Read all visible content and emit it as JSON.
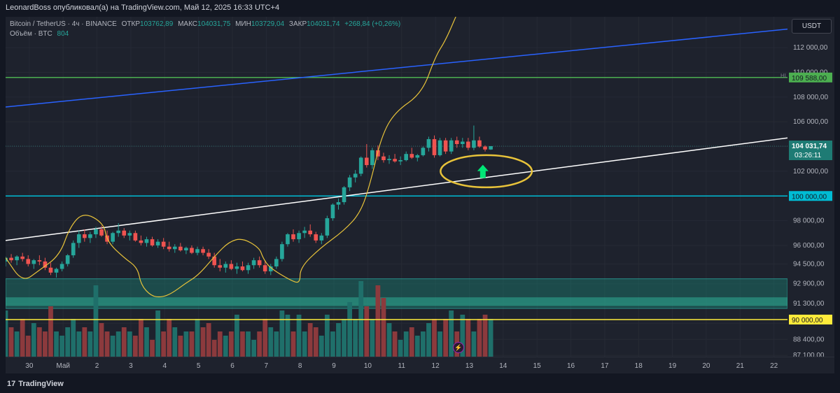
{
  "header": {
    "publisher": "LeonardBoss опубликовал(а) на TradingView.com, Май 12, 2025 16:33 UTC+4"
  },
  "legend": {
    "symbol": "Bitcoin / TetherUS · 4ч · BINANCE",
    "open_label": "ОТКР",
    "open": "103762,89",
    "high_label": "МАКС",
    "high": "104031,75",
    "low_label": "МИН",
    "low": "103729,04",
    "close_label": "ЗАКР",
    "close": "104031,74",
    "change": "+268,84 (+0,26%)",
    "volume_label": "Объём · BTC",
    "volume": "804"
  },
  "currency_button": "USDT",
  "hi_marker": "HI",
  "footer": {
    "brand": "TradingView",
    "logo": "17"
  },
  "colors": {
    "up": "#26a69a",
    "down": "#ef5350",
    "vol_up": "#1f6f6a",
    "vol_down": "#8c3a3d",
    "blue_line": "#2962ff",
    "white_line": "#ffffff",
    "green_line": "#4caf50",
    "cyan_line": "#00bcd4",
    "yellow_line": "#ffeb3b",
    "zone": "#1a7f72",
    "annotation": "#e8c33a",
    "arrow": "#00e676"
  },
  "chart_data": {
    "type": "candlestick",
    "title": "Bitcoin / TetherUS · 4ч · BINANCE",
    "ylim": [
      87000,
      114500
    ],
    "y_ticks": [
      87100,
      88400,
      89700,
      91300,
      92900,
      94500,
      96000,
      98000,
      100000,
      102000,
      104000,
      106000,
      108000,
      110000,
      112000
    ],
    "y_tick_labels": [
      "87 100,00",
      "88 400,00",
      "",
      "91 300,00",
      "92 900,00",
      "94 500,00",
      "96 000,00",
      "98 000,00",
      "",
      "102 000,00",
      "",
      "106 000,00",
      "108 000,00",
      "110 000,00",
      "112 000,00"
    ],
    "x_ticks": [
      "30",
      "Май",
      "2",
      "3",
      "4",
      "5",
      "6",
      "7",
      "8",
      "9",
      "10",
      "11",
      "12",
      "13",
      "14",
      "15",
      "16",
      "17",
      "18",
      "19",
      "20",
      "21",
      "22"
    ],
    "x_tick_day_offsets": [
      0,
      1,
      2,
      3,
      4,
      5,
      6,
      7,
      8,
      9,
      10,
      11,
      12,
      13,
      14,
      15,
      16,
      17,
      18,
      19,
      20,
      21,
      22
    ],
    "x_range_days": [
      -0.7,
      22.4
    ],
    "candle_start_day": -0.7,
    "candles_per_day": 6,
    "ohlc": [
      [
        94700,
        95100,
        94300,
        95000
      ],
      [
        95000,
        95300,
        94600,
        94800
      ],
      [
        94800,
        95200,
        94400,
        95100
      ],
      [
        95100,
        95400,
        94700,
        94900
      ],
      [
        94900,
        95200,
        94300,
        94500
      ],
      [
        94500,
        94900,
        94100,
        94800
      ],
      [
        94800,
        95200,
        94400,
        94700
      ],
      [
        94700,
        95000,
        94000,
        94200
      ],
      [
        94200,
        94600,
        93600,
        93800
      ],
      [
        93800,
        94200,
        93400,
        94100
      ],
      [
        94100,
        94700,
        93900,
        94500
      ],
      [
        94500,
        95300,
        94300,
        95200
      ],
      [
        95200,
        96400,
        95000,
        96200
      ],
      [
        96200,
        97200,
        95800,
        96900
      ],
      [
        96900,
        97300,
        96300,
        96600
      ],
      [
        96600,
        97100,
        96200,
        96900
      ],
      [
        96900,
        97500,
        96600,
        97300
      ],
      [
        97300,
        97600,
        96700,
        96800
      ],
      [
        96800,
        97200,
        96100,
        96300
      ],
      [
        96300,
        97100,
        96100,
        97000
      ],
      [
        97000,
        97800,
        96700,
        97200
      ],
      [
        97200,
        97400,
        96600,
        96800
      ],
      [
        96800,
        97200,
        96400,
        97000
      ],
      [
        97000,
        97200,
        96300,
        96400
      ],
      [
        96400,
        96800,
        96000,
        96200
      ],
      [
        96200,
        96700,
        95900,
        96500
      ],
      [
        96500,
        96700,
        95900,
        96000
      ],
      [
        96000,
        96500,
        95800,
        96300
      ],
      [
        96300,
        96600,
        95700,
        95900
      ],
      [
        95900,
        96300,
        95500,
        95700
      ],
      [
        95700,
        96100,
        95400,
        95900
      ],
      [
        95900,
        96200,
        95500,
        95600
      ],
      [
        95600,
        95900,
        95300,
        95800
      ],
      [
        95800,
        96000,
        95300,
        95400
      ],
      [
        95400,
        95900,
        95200,
        95700
      ],
      [
        95700,
        95900,
        95200,
        95400
      ],
      [
        95400,
        95700,
        94900,
        95100
      ],
      [
        95100,
        95400,
        94200,
        94400
      ],
      [
        94400,
        94900,
        93900,
        94200
      ],
      [
        94200,
        94700,
        93800,
        94500
      ],
      [
        94500,
        94800,
        94000,
        94100
      ],
      [
        94100,
        94600,
        93700,
        94300
      ],
      [
        94300,
        94700,
        93900,
        94000
      ],
      [
        94000,
        94600,
        93700,
        94400
      ],
      [
        94400,
        95000,
        94100,
        94800
      ],
      [
        94800,
        95100,
        94200,
        94400
      ],
      [
        94400,
        94800,
        93700,
        93900
      ],
      [
        93900,
        94500,
        93600,
        94300
      ],
      [
        94300,
        95100,
        94100,
        94900
      ],
      [
        94900,
        96300,
        94700,
        96100
      ],
      [
        96100,
        97000,
        95900,
        96900
      ],
      [
        96900,
        97300,
        96300,
        96500
      ],
      [
        96500,
        97200,
        96200,
        97000
      ],
      [
        97000,
        97500,
        96600,
        97200
      ],
      [
        97200,
        97700,
        96700,
        96900
      ],
      [
        96900,
        97100,
        96200,
        96400
      ],
      [
        96400,
        97000,
        96100,
        96800
      ],
      [
        96800,
        98400,
        96600,
        98200
      ],
      [
        98200,
        99400,
        98000,
        99300
      ],
      [
        99300,
        99800,
        98900,
        99500
      ],
      [
        99500,
        100800,
        99300,
        100700
      ],
      [
        100700,
        101700,
        100400,
        101500
      ],
      [
        101500,
        102100,
        101100,
        101800
      ],
      [
        101800,
        103200,
        101600,
        103100
      ],
      [
        103100,
        104200,
        102300,
        102500
      ],
      [
        102500,
        103900,
        102200,
        103700
      ],
      [
        103700,
        104100,
        102900,
        103200
      ],
      [
        103200,
        103500,
        102700,
        102900
      ],
      [
        102900,
        103300,
        102600,
        103000
      ],
      [
        103000,
        103400,
        102700,
        102800
      ],
      [
        102800,
        103200,
        102500,
        102900
      ],
      [
        102900,
        103600,
        102800,
        103400
      ],
      [
        103400,
        103900,
        103000,
        103100
      ],
      [
        103100,
        103400,
        102800,
        103300
      ],
      [
        103300,
        104000,
        103200,
        103900
      ],
      [
        103900,
        104800,
        103600,
        104600
      ],
      [
        104600,
        104900,
        103100,
        103300
      ],
      [
        103300,
        104700,
        103200,
        104500
      ],
      [
        104500,
        104700,
        103400,
        103600
      ],
      [
        103600,
        104700,
        103400,
        104500
      ],
      [
        104500,
        104800,
        103900,
        104200
      ],
      [
        104200,
        104700,
        103900,
        104400
      ],
      [
        104400,
        104700,
        103700,
        103900
      ],
      [
        103900,
        105700,
        103700,
        104500
      ],
      [
        104500,
        104800,
        103900,
        104000
      ],
      [
        104000,
        104100,
        103600,
        103762
      ],
      [
        103762,
        104032,
        103729,
        104032
      ]
    ],
    "volume_rel": [
      0.55,
      0.35,
      0.3,
      0.45,
      0.25,
      0.4,
      0.35,
      0.3,
      0.6,
      0.3,
      0.25,
      0.35,
      0.45,
      0.3,
      0.35,
      0.3,
      0.85,
      0.4,
      0.3,
      0.25,
      0.3,
      0.35,
      0.3,
      0.25,
      0.45,
      0.35,
      0.2,
      0.55,
      0.3,
      0.45,
      0.35,
      0.25,
      0.3,
      0.3,
      0.45,
      0.35,
      0.4,
      0.2,
      0.3,
      0.25,
      0.3,
      0.5,
      0.3,
      0.3,
      0.2,
      0.3,
      0.45,
      0.35,
      0.3,
      0.55,
      0.5,
      0.3,
      0.5,
      0.3,
      0.4,
      0.35,
      0.25,
      0.5,
      0.3,
      0.4,
      0.45,
      0.65,
      0.45,
      0.9,
      0.6,
      0.45,
      0.85,
      0.7,
      0.4,
      0.3,
      0.2,
      0.3,
      0.35,
      0.25,
      0.3,
      0.4,
      0.45,
      0.3,
      0.45,
      0.55,
      0.3,
      0.5,
      0.45,
      0.3,
      0.45,
      0.5,
      0.45,
      0.25
    ],
    "hlines": [
      {
        "price": 109588,
        "label": "109 588,00",
        "color": "#4caf50"
      },
      {
        "price": 100000,
        "label": "100 000,00",
        "color": "#00bcd4"
      },
      {
        "price": 90000,
        "label": "90 000,00",
        "color": "#ffeb3b"
      }
    ],
    "zone": {
      "top": 93300,
      "bottom": 90900
    },
    "zone_inner": {
      "top": 91800,
      "bottom": 91100
    },
    "current_price": {
      "price": 104031.74,
      "label": "104 031,74",
      "countdown": "03:26:11"
    },
    "trendlines": [
      {
        "name": "blue",
        "from": [
          -0.7,
          107200
        ],
        "to": [
          22.4,
          113500
        ],
        "color": "#2962ff"
      },
      {
        "name": "white",
        "from": [
          -0.7,
          96400
        ],
        "to": [
          22.4,
          104700
        ],
        "color": "#ffffff"
      }
    ],
    "annotation_path_days_prices": [
      [
        -0.7,
        95000
      ],
      [
        -0.2,
        93000
      ],
      [
        0.3,
        94000
      ],
      [
        0.9,
        95200
      ],
      [
        1.2,
        97500
      ],
      [
        1.6,
        98700
      ],
      [
        2.2,
        97800
      ],
      [
        2.3,
        96300
      ],
      [
        2.8,
        95000
      ],
      [
        3.2,
        94200
      ],
      [
        3.3,
        92800
      ],
      [
        3.6,
        91900
      ],
      [
        3.9,
        91800
      ],
      [
        4.2,
        92100
      ],
      [
        4.6,
        92900
      ],
      [
        5.0,
        93600
      ],
      [
        5.5,
        95200
      ],
      [
        5.9,
        96300
      ],
      [
        6.3,
        96600
      ],
      [
        6.8,
        95800
      ],
      [
        6.9,
        95000
      ],
      [
        7.1,
        94200
      ],
      [
        7.7,
        93200
      ],
      [
        8.0,
        92900
      ],
      [
        8.0,
        94200
      ],
      [
        8.6,
        95800
      ],
      [
        9.3,
        97200
      ],
      [
        9.8,
        98700
      ],
      [
        10.1,
        101300
      ],
      [
        10.4,
        104800
      ],
      [
        10.8,
        106800
      ],
      [
        11.6,
        108300
      ],
      [
        12.0,
        111300
      ],
      [
        12.3,
        112600
      ],
      [
        12.6,
        114500
      ]
    ],
    "ellipse": {
      "cx_day": 13.5,
      "cy_price": 102000,
      "rx_days": 1.35,
      "ry_price": 1300
    },
    "arrow": {
      "day": 13.4,
      "price": 101900
    }
  }
}
